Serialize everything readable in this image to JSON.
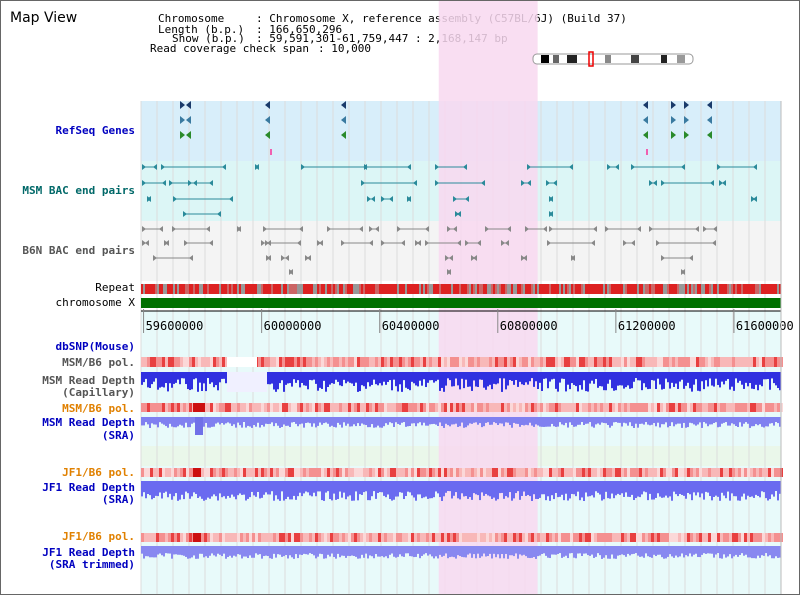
{
  "view": {
    "title": "Map View",
    "info": {
      "chromosome_key": "Chromosome",
      "chromosome_value": ": Chromosome X, reference assembly (C57BL/6J) (Build 37)",
      "length_key": "Length (b.p.)",
      "length_value": ": 166,650,296",
      "show_key": "Show (b.p.)",
      "show_value": ": 59,591,301-61,759,447 : 2,168,147 bp",
      "coverage_key": "Read coverage check span",
      "coverage_value": ": 10,000"
    }
  },
  "tracks": {
    "refseq": "RefSeq Genes",
    "msm_bac": "MSM BAC end pairs",
    "b6n_bac": "B6N BAC end pairs",
    "repeat": "Repeat",
    "chromosome": "chromosome X",
    "dbsnp": "dbSNP(Mouse)",
    "msm_b6_pol_1": "MSM/B6 pol.",
    "msm_read_depth_cap_1": "MSM Read Depth",
    "msm_read_depth_cap_2": "(Capillary)",
    "msm_b6_pol_2": "MSM/B6 pol.",
    "msm_read_depth_sra_1": "MSM Read Depth",
    "msm_read_depth_sra_2": "(SRA)",
    "jf1_b6_pol_1": "JF1/B6 pol.",
    "jf1_read_depth_sra_1": "JF1 Read Depth",
    "jf1_read_depth_sra_2": "(SRA)",
    "jf1_b6_pol_2": "JF1/B6 pol.",
    "jf1_read_depth_trim_1": "JF1 Read Depth",
    "jf1_read_depth_trim_2": "(SRA trimmed)"
  },
  "ruler": {
    "range_bp": [
      59591301,
      61759447
    ],
    "ticks": [
      "59600000",
      "60000000",
      "60400000",
      "60800000",
      "61200000",
      "61600000"
    ],
    "tick_values": [
      59600000,
      60000000,
      60400000,
      60800000,
      61200000,
      61600000
    ]
  },
  "highlight": {
    "start_bp": 60600000,
    "end_bp": 60935000,
    "color": "#f8d8f0"
  },
  "colors": {
    "refseq_bg": "#d8eefa",
    "bac_bg": "#dcf6f6",
    "b6n_bg": "#f4f4f4",
    "chromosome_bar": "#007000",
    "label_blue": "#0000c0",
    "label_teal": "#006868",
    "label_orange": "#e08000",
    "label_dark": "#555555",
    "depth_blue": "#3030e0",
    "depth_light": "#8080f0",
    "pol_red": "#f08080",
    "bac_teal": "#2a8a9a"
  },
  "overview_band_marker": "chromosome-ideogram"
}
